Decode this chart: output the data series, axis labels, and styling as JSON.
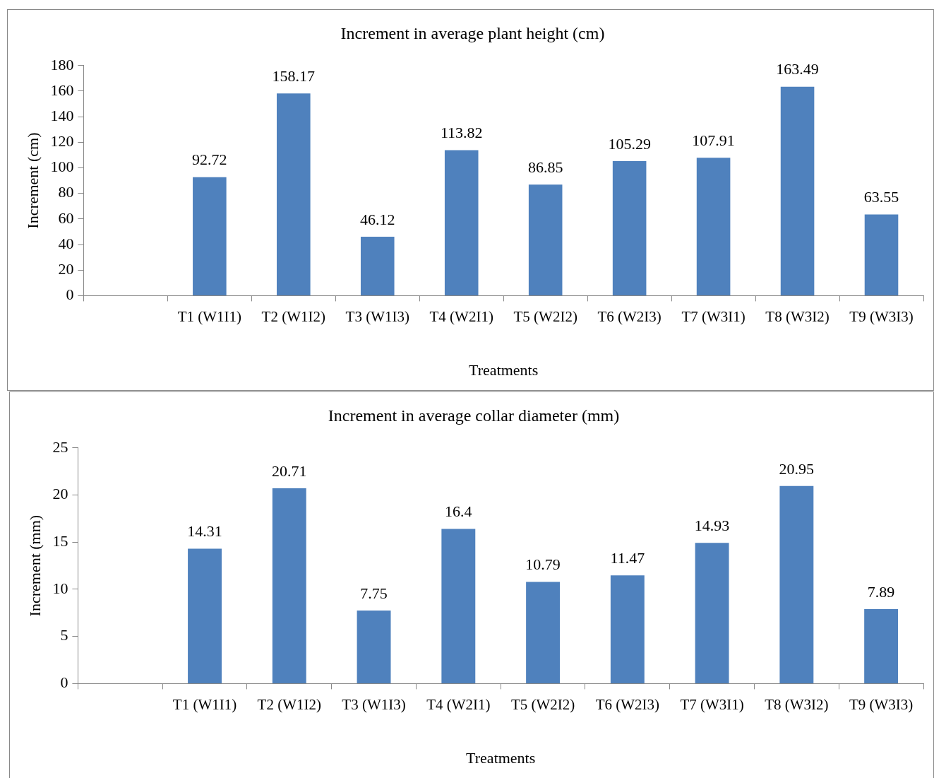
{
  "chart_data": [
    {
      "type": "bar",
      "title": "Increment in average plant height (cm)",
      "xlabel": "Treatments",
      "ylabel": "Increment (cm)",
      "categories": [
        null,
        "T1 (W1I1)",
        "T2 (W1I2)",
        "T3 (W1I3)",
        "T4 (W2I1)",
        "T5 (W2I2)",
        "T6 (W2I3)",
        "T7 (W3I1)",
        "T8 (W3I2)",
        "T9 (W3I3)"
      ],
      "values": [
        null,
        92.72,
        158.17,
        46.12,
        113.82,
        86.85,
        105.29,
        107.91,
        163.49,
        63.55
      ],
      "color": "#4f81bd",
      "ylim": [
        0,
        180
      ],
      "yticks": [
        0,
        20,
        40,
        60,
        80,
        100,
        120,
        140,
        160,
        180
      ],
      "data_labels": true
    },
    {
      "type": "bar",
      "title": "Increment in average collar diameter (mm)",
      "xlabel": "Treatments",
      "ylabel": "Increment (mm)",
      "categories": [
        null,
        "T1 (W1I1)",
        "T2 (W1I2)",
        "T3 (W1I3)",
        "T4 (W2I1)",
        "T5 (W2I2)",
        "T6 (W2I3)",
        "T7 (W3I1)",
        "T8 (W3I2)",
        "T9 (W3I3)"
      ],
      "values": [
        null,
        14.31,
        20.71,
        7.75,
        16.4,
        10.79,
        11.47,
        14.93,
        20.95,
        7.89
      ],
      "color": "#4f81bd",
      "ylim": [
        0,
        25
      ],
      "yticks": [
        0,
        5,
        10,
        15,
        20,
        25
      ],
      "data_labels": true
    }
  ]
}
